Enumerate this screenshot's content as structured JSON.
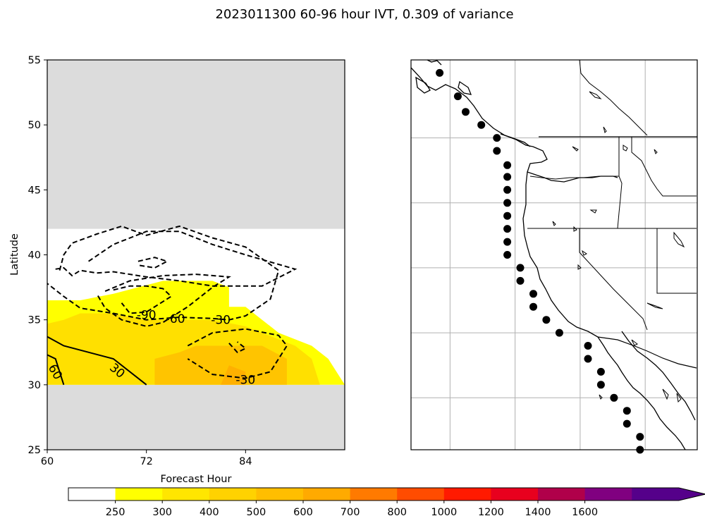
{
  "title": "2023011300 60-96 hour IVT, 0.309 of variance",
  "chart_data": [
    {
      "type": "contour",
      "xlabel": "Forecast Hour",
      "ylabel": "Latitude",
      "xlim": [
        60,
        96
      ],
      "ylim": [
        25,
        55
      ],
      "x_ticks": [
        60,
        72,
        84
      ],
      "y_ticks": [
        25,
        30,
        35,
        40,
        45,
        50,
        55
      ],
      "data_lat_range": [
        30,
        42
      ],
      "masked_fill_color": "#dcdcdc",
      "filled_levels": [
        {
          "level": 250,
          "color": "#ffff00",
          "polygon": [
            [
              60,
              30
            ],
            [
              96,
              30
            ],
            [
              94,
              32
            ],
            [
              92,
              33
            ],
            [
              88,
              34
            ],
            [
              86,
              35
            ],
            [
              84,
              36
            ],
            [
              82,
              36
            ],
            [
              82,
              37.5
            ],
            [
              80,
              38
            ],
            [
              76,
              38
            ],
            [
              74,
              38
            ],
            [
              68,
              37
            ],
            [
              64,
              36.5
            ],
            [
              60,
              36.5
            ]
          ]
        },
        {
          "level": 300,
          "color": "#ffe000",
          "polygon": [
            [
              60,
              30
            ],
            [
              93,
              30
            ],
            [
              92,
              32
            ],
            [
              90,
              33
            ],
            [
              86,
              34
            ],
            [
              84,
              34.5
            ],
            [
              80,
              35
            ],
            [
              76,
              35
            ],
            [
              72,
              35
            ],
            [
              68,
              35.5
            ],
            [
              64,
              35.5
            ],
            [
              62,
              35
            ],
            [
              60,
              34.7
            ]
          ]
        },
        {
          "level": 400,
          "color": "#ffc400",
          "polygon": [
            [
              73,
              30
            ],
            [
              89,
              30
            ],
            [
              89,
              32
            ],
            [
              86,
              33
            ],
            [
              82,
              33
            ],
            [
              78,
              33
            ],
            [
              76,
              32.5
            ],
            [
              73,
              32
            ]
          ]
        },
        {
          "level": 500,
          "color": "#ffb000",
          "polygon": [
            [
              81,
              30
            ],
            [
              84,
              30
            ],
            [
              84,
              31
            ],
            [
              82,
              31.5
            ]
          ]
        }
      ],
      "contours": [
        {
          "level": 60,
          "label": "60",
          "style": "solid",
          "path": [
            [
              60,
              32.3
            ],
            [
              61,
              32
            ],
            [
              62,
              30
            ]
          ],
          "label_at": [
            61,
            31
          ]
        },
        {
          "level": 30,
          "label": "30",
          "style": "solid",
          "path": [
            [
              60,
              33.7
            ],
            [
              62,
              33
            ],
            [
              68,
              32
            ],
            [
              72,
              30
            ]
          ],
          "label_at": [
            68.5,
            31.1
          ]
        },
        {
          "level": -30,
          "label": "-30",
          "style": "dashed",
          "path": [
            [
              65,
              39.5
            ],
            [
              68,
              40.8
            ],
            [
              72,
              41.8
            ],
            [
              76,
              41.8
            ],
            [
              80,
              40.8
            ],
            [
              84,
              40
            ],
            [
              90,
              38.9
            ],
            [
              86,
              37.6
            ],
            [
              80,
              37.6
            ],
            [
              76,
              38
            ],
            [
              72,
              38.3
            ],
            [
              68,
              38.7
            ],
            [
              66,
              38.6
            ],
            [
              64,
              38.8
            ],
            [
              63,
              38.4
            ],
            [
              62,
              39
            ],
            [
              61,
              38.9
            ]
          ]
        },
        {
          "level": -30,
          "label": "-30",
          "style": "dashed",
          "path": [
            [
              61.5,
              38.8
            ],
            [
              62,
              40
            ],
            [
              63,
              40.9
            ],
            [
              66,
              41.6
            ],
            [
              69,
              42.2
            ],
            [
              72,
              41.5
            ],
            [
              76,
              42.2
            ],
            [
              80,
              41.3
            ],
            [
              84,
              40.6
            ],
            [
              88,
              38.8
            ],
            [
              87,
              36.6
            ],
            [
              84,
              35.3
            ],
            [
              82,
              35
            ],
            [
              80,
              35.1
            ],
            [
              76,
              35.2
            ],
            [
              72,
              35
            ],
            [
              68,
              35.5
            ],
            [
              64,
              35.9
            ],
            [
              62,
              36.8
            ],
            [
              60,
              37.8
            ]
          ]
        },
        {
          "level": -30,
          "label": "-30",
          "style": "dashed",
          "path": [
            [
              77,
              33
            ],
            [
              80,
              34
            ],
            [
              84,
              34.3
            ],
            [
              88,
              33.8
            ],
            [
              89,
              33
            ],
            [
              87,
              31
            ],
            [
              84,
              30.5
            ],
            [
              80,
              30.8
            ],
            [
              77,
              32
            ]
          ]
        },
        {
          "level": -60,
          "label": "-60",
          "style": "dashed",
          "path": [
            [
              71,
              39.5
            ],
            [
              73,
              39.8
            ],
            [
              74.5,
              39.5
            ],
            [
              73,
              39
            ],
            [
              71,
              39.2
            ]
          ]
        },
        {
          "level": -60,
          "label": "-60",
          "style": "dashed",
          "path": [
            [
              67,
              37.2
            ],
            [
              70,
              38
            ],
            [
              74,
              38.4
            ],
            [
              78,
              38.5
            ],
            [
              82,
              38.3
            ],
            [
              80,
              37.5
            ],
            [
              77,
              36
            ],
            [
              74,
              34.8
            ],
            [
              72,
              34.5
            ],
            [
              69,
              35
            ],
            [
              67,
              35.9
            ],
            [
              66,
              37
            ]
          ]
        },
        {
          "level": -90,
          "label": "-90",
          "style": "dashed",
          "path": [
            [
              68,
              37.3
            ],
            [
              70,
              37.6
            ],
            [
              72,
              37.6
            ],
            [
              74,
              37.4
            ],
            [
              75,
              36.8
            ],
            [
              72,
              35.6
            ],
            [
              70,
              35.5
            ],
            [
              69,
              36.3
            ]
          ]
        },
        {
          "level": -90,
          "label": "",
          "style": "dashed",
          "path": [
            [
              82,
              33.2
            ],
            [
              83,
              32.5
            ],
            [
              84,
              32.8
            ],
            [
              83,
              33.3
            ]
          ]
        }
      ],
      "contour_labels": [
        "-90",
        "-60",
        "-30",
        "-30",
        "30",
        "60"
      ]
    },
    {
      "type": "map",
      "region": "US West Coast",
      "lon_range": [
        -132,
        -110
      ],
      "lat_range": [
        25,
        55
      ],
      "gridlines": true,
      "point_color": "#000000",
      "coast_points": [
        {
          "lon": -129.8,
          "lat": 54.0
        },
        {
          "lon": -128.4,
          "lat": 52.2
        },
        {
          "lon": -127.8,
          "lat": 51.0
        },
        {
          "lon": -126.6,
          "lat": 50.0
        },
        {
          "lon": -125.4,
          "lat": 49.0
        },
        {
          "lon": -125.4,
          "lat": 48.0
        },
        {
          "lon": -124.6,
          "lat": 46.9
        },
        {
          "lon": -124.6,
          "lat": 46.0
        },
        {
          "lon": -124.6,
          "lat": 45.0
        },
        {
          "lon": -124.6,
          "lat": 44.0
        },
        {
          "lon": -124.6,
          "lat": 43.0
        },
        {
          "lon": -124.6,
          "lat": 42.0
        },
        {
          "lon": -124.6,
          "lat": 41.0
        },
        {
          "lon": -124.6,
          "lat": 40.0
        },
        {
          "lon": -123.6,
          "lat": 39.0
        },
        {
          "lon": -123.6,
          "lat": 38.0
        },
        {
          "lon": -122.6,
          "lat": 37.0
        },
        {
          "lon": -122.6,
          "lat": 36.0
        },
        {
          "lon": -121.6,
          "lat": 35.0
        },
        {
          "lon": -120.6,
          "lat": 34.0
        },
        {
          "lon": -118.4,
          "lat": 33.0
        },
        {
          "lon": -118.4,
          "lat": 32.0
        },
        {
          "lon": -117.4,
          "lat": 31.0
        },
        {
          "lon": -117.4,
          "lat": 30.0
        },
        {
          "lon": -116.4,
          "lat": 29.0
        },
        {
          "lon": -115.4,
          "lat": 28.0
        },
        {
          "lon": -115.4,
          "lat": 27.0
        },
        {
          "lon": -114.4,
          "lat": 26.0
        },
        {
          "lon": -114.4,
          "lat": 25.0
        }
      ]
    }
  ],
  "colorbar": {
    "tick_labels": [
      "250",
      "300",
      "400",
      "500",
      "600",
      "700",
      "800",
      "1000",
      "1200",
      "1400",
      "1600"
    ],
    "colors": [
      "#ffffff",
      "#ffff00",
      "#ffe600",
      "#ffd200",
      "#ffbe00",
      "#ffaa00",
      "#ff7a00",
      "#ff4c00",
      "#ff1a00",
      "#e8001e",
      "#b0004a",
      "#800080",
      "#55008a"
    ],
    "extend": "max"
  }
}
